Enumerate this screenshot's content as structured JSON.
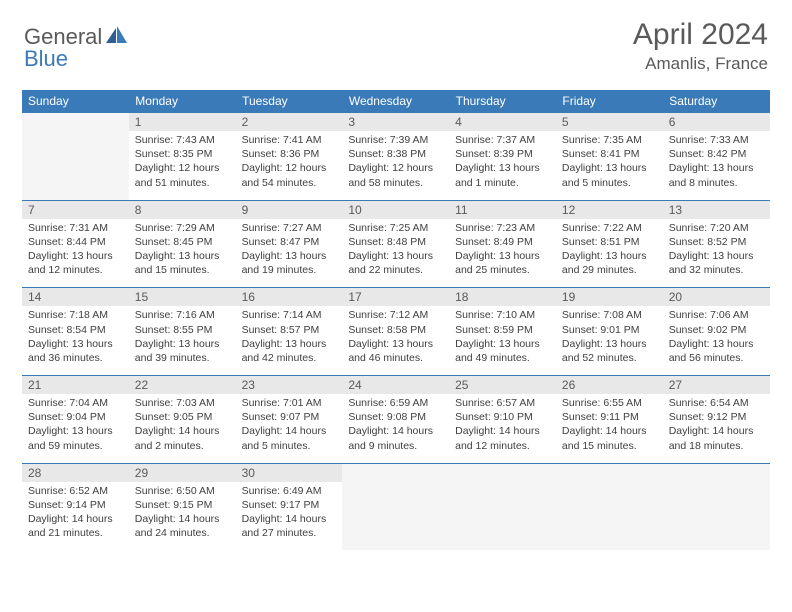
{
  "logo": {
    "part1": "General",
    "part2": "Blue"
  },
  "title": "April 2024",
  "location": "Amanlis, France",
  "colors": {
    "header_bg": "#3b7ab8",
    "header_fg": "#ffffff",
    "daynum_bg": "#e8e8e8",
    "text": "#404040",
    "border": "#3b7ab8",
    "logo_gray": "#5a5a5a",
    "logo_blue": "#3b7ab8"
  },
  "weekdays": [
    "Sunday",
    "Monday",
    "Tuesday",
    "Wednesday",
    "Thursday",
    "Friday",
    "Saturday"
  ],
  "weeks": [
    {
      "days": [
        {
          "num": "",
          "sunrise": "",
          "sunset": "",
          "daylight": ""
        },
        {
          "num": "1",
          "sunrise": "Sunrise: 7:43 AM",
          "sunset": "Sunset: 8:35 PM",
          "daylight": "Daylight: 12 hours and 51 minutes."
        },
        {
          "num": "2",
          "sunrise": "Sunrise: 7:41 AM",
          "sunset": "Sunset: 8:36 PM",
          "daylight": "Daylight: 12 hours and 54 minutes."
        },
        {
          "num": "3",
          "sunrise": "Sunrise: 7:39 AM",
          "sunset": "Sunset: 8:38 PM",
          "daylight": "Daylight: 12 hours and 58 minutes."
        },
        {
          "num": "4",
          "sunrise": "Sunrise: 7:37 AM",
          "sunset": "Sunset: 8:39 PM",
          "daylight": "Daylight: 13 hours and 1 minute."
        },
        {
          "num": "5",
          "sunrise": "Sunrise: 7:35 AM",
          "sunset": "Sunset: 8:41 PM",
          "daylight": "Daylight: 13 hours and 5 minutes."
        },
        {
          "num": "6",
          "sunrise": "Sunrise: 7:33 AM",
          "sunset": "Sunset: 8:42 PM",
          "daylight": "Daylight: 13 hours and 8 minutes."
        }
      ]
    },
    {
      "days": [
        {
          "num": "7",
          "sunrise": "Sunrise: 7:31 AM",
          "sunset": "Sunset: 8:44 PM",
          "daylight": "Daylight: 13 hours and 12 minutes."
        },
        {
          "num": "8",
          "sunrise": "Sunrise: 7:29 AM",
          "sunset": "Sunset: 8:45 PM",
          "daylight": "Daylight: 13 hours and 15 minutes."
        },
        {
          "num": "9",
          "sunrise": "Sunrise: 7:27 AM",
          "sunset": "Sunset: 8:47 PM",
          "daylight": "Daylight: 13 hours and 19 minutes."
        },
        {
          "num": "10",
          "sunrise": "Sunrise: 7:25 AM",
          "sunset": "Sunset: 8:48 PM",
          "daylight": "Daylight: 13 hours and 22 minutes."
        },
        {
          "num": "11",
          "sunrise": "Sunrise: 7:23 AM",
          "sunset": "Sunset: 8:49 PM",
          "daylight": "Daylight: 13 hours and 25 minutes."
        },
        {
          "num": "12",
          "sunrise": "Sunrise: 7:22 AM",
          "sunset": "Sunset: 8:51 PM",
          "daylight": "Daylight: 13 hours and 29 minutes."
        },
        {
          "num": "13",
          "sunrise": "Sunrise: 7:20 AM",
          "sunset": "Sunset: 8:52 PM",
          "daylight": "Daylight: 13 hours and 32 minutes."
        }
      ]
    },
    {
      "days": [
        {
          "num": "14",
          "sunrise": "Sunrise: 7:18 AM",
          "sunset": "Sunset: 8:54 PM",
          "daylight": "Daylight: 13 hours and 36 minutes."
        },
        {
          "num": "15",
          "sunrise": "Sunrise: 7:16 AM",
          "sunset": "Sunset: 8:55 PM",
          "daylight": "Daylight: 13 hours and 39 minutes."
        },
        {
          "num": "16",
          "sunrise": "Sunrise: 7:14 AM",
          "sunset": "Sunset: 8:57 PM",
          "daylight": "Daylight: 13 hours and 42 minutes."
        },
        {
          "num": "17",
          "sunrise": "Sunrise: 7:12 AM",
          "sunset": "Sunset: 8:58 PM",
          "daylight": "Daylight: 13 hours and 46 minutes."
        },
        {
          "num": "18",
          "sunrise": "Sunrise: 7:10 AM",
          "sunset": "Sunset: 8:59 PM",
          "daylight": "Daylight: 13 hours and 49 minutes."
        },
        {
          "num": "19",
          "sunrise": "Sunrise: 7:08 AM",
          "sunset": "Sunset: 9:01 PM",
          "daylight": "Daylight: 13 hours and 52 minutes."
        },
        {
          "num": "20",
          "sunrise": "Sunrise: 7:06 AM",
          "sunset": "Sunset: 9:02 PM",
          "daylight": "Daylight: 13 hours and 56 minutes."
        }
      ]
    },
    {
      "days": [
        {
          "num": "21",
          "sunrise": "Sunrise: 7:04 AM",
          "sunset": "Sunset: 9:04 PM",
          "daylight": "Daylight: 13 hours and 59 minutes."
        },
        {
          "num": "22",
          "sunrise": "Sunrise: 7:03 AM",
          "sunset": "Sunset: 9:05 PM",
          "daylight": "Daylight: 14 hours and 2 minutes."
        },
        {
          "num": "23",
          "sunrise": "Sunrise: 7:01 AM",
          "sunset": "Sunset: 9:07 PM",
          "daylight": "Daylight: 14 hours and 5 minutes."
        },
        {
          "num": "24",
          "sunrise": "Sunrise: 6:59 AM",
          "sunset": "Sunset: 9:08 PM",
          "daylight": "Daylight: 14 hours and 9 minutes."
        },
        {
          "num": "25",
          "sunrise": "Sunrise: 6:57 AM",
          "sunset": "Sunset: 9:10 PM",
          "daylight": "Daylight: 14 hours and 12 minutes."
        },
        {
          "num": "26",
          "sunrise": "Sunrise: 6:55 AM",
          "sunset": "Sunset: 9:11 PM",
          "daylight": "Daylight: 14 hours and 15 minutes."
        },
        {
          "num": "27",
          "sunrise": "Sunrise: 6:54 AM",
          "sunset": "Sunset: 9:12 PM",
          "daylight": "Daylight: 14 hours and 18 minutes."
        }
      ]
    },
    {
      "days": [
        {
          "num": "28",
          "sunrise": "Sunrise: 6:52 AM",
          "sunset": "Sunset: 9:14 PM",
          "daylight": "Daylight: 14 hours and 21 minutes."
        },
        {
          "num": "29",
          "sunrise": "Sunrise: 6:50 AM",
          "sunset": "Sunset: 9:15 PM",
          "daylight": "Daylight: 14 hours and 24 minutes."
        },
        {
          "num": "30",
          "sunrise": "Sunrise: 6:49 AM",
          "sunset": "Sunset: 9:17 PM",
          "daylight": "Daylight: 14 hours and 27 minutes."
        },
        {
          "num": "",
          "sunrise": "",
          "sunset": "",
          "daylight": ""
        },
        {
          "num": "",
          "sunrise": "",
          "sunset": "",
          "daylight": ""
        },
        {
          "num": "",
          "sunrise": "",
          "sunset": "",
          "daylight": ""
        },
        {
          "num": "",
          "sunrise": "",
          "sunset": "",
          "daylight": ""
        }
      ]
    }
  ]
}
